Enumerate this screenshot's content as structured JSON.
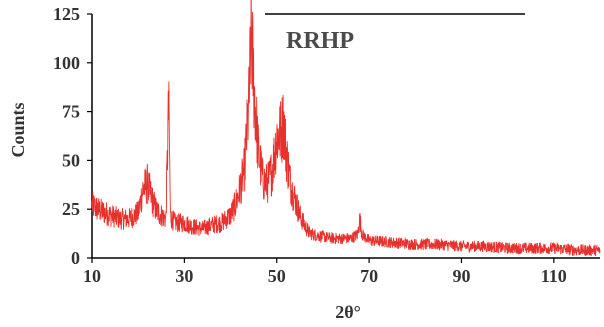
{
  "chart_data": {
    "type": "line",
    "title": "RRHP",
    "xlabel": "2θ°",
    "ylabel": "Counts",
    "xlim": [
      10,
      120
    ],
    "ylim": [
      0,
      125
    ],
    "xticks": [
      10,
      30,
      50,
      70,
      90,
      110
    ],
    "yticks": [
      0,
      25,
      50,
      75,
      100,
      125
    ],
    "grid": false,
    "legend": "none",
    "series": [
      {
        "color": "#e8312c",
        "x": [
          10,
          12,
          14,
          16,
          18,
          20,
          21,
          22,
          23,
          24,
          25,
          26,
          26.6,
          27,
          28,
          30,
          32,
          34,
          36,
          38,
          40,
          41,
          42,
          43,
          44,
          44.5,
          45,
          46,
          47,
          48,
          49,
          50,
          51,
          51.5,
          52,
          53,
          54,
          55,
          56,
          57,
          58,
          60,
          62,
          64,
          66,
          67.5,
          68,
          68.5,
          70,
          75,
          80,
          85,
          90,
          95,
          100,
          105,
          110,
          115,
          120
        ],
        "y": [
          27,
          24,
          22,
          20,
          20,
          23,
          35,
          38,
          30,
          24,
          22,
          20,
          80,
          21,
          18,
          18,
          16,
          15,
          17,
          18,
          22,
          27,
          35,
          45,
          80,
          118,
          90,
          55,
          40,
          38,
          45,
          62,
          65,
          70,
          55,
          38,
          30,
          22,
          17,
          13,
          12,
          11,
          10,
          10,
          10,
          12,
          20,
          12,
          9,
          8,
          7,
          7,
          6,
          6,
          5,
          5,
          5,
          4,
          4
        ]
      }
    ]
  }
}
